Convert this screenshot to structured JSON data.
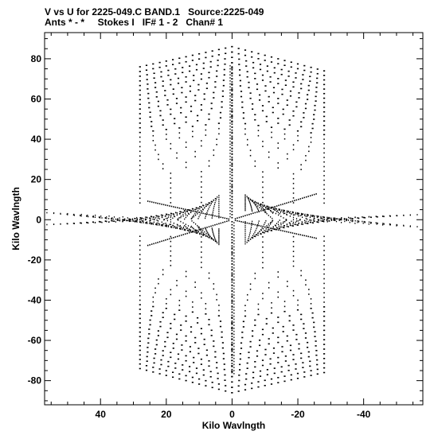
{
  "header": {
    "line1": "V vs U for 2225-049.C BAND.1   Source:2225-049",
    "line2": "Ants * - *     Stokes I   IF# 1 - 2   Chan# 1"
  },
  "chart_data": {
    "type": "scatter",
    "title": "V vs U for 2225-049.C BAND.1   Source:2225-049",
    "subtitle": "Ants * - *     Stokes I   IF# 1 - 2   Chan# 1",
    "xlabel": "Kilo Wavlngth",
    "ylabel": "Kilo Wavlngth",
    "xlim": [
      57,
      -58
    ],
    "ylim": [
      -92,
      93
    ],
    "x_ticks": [
      40,
      20,
      0,
      -20,
      -40
    ],
    "x_tick_labels": [
      "40",
      "20",
      "0",
      "-20",
      "-40"
    ],
    "y_ticks": [
      80,
      60,
      40,
      20,
      0,
      -20,
      -40,
      -60,
      -80
    ],
    "y_tick_labels": [
      "80",
      "60",
      "40",
      "20",
      "0",
      "-20",
      "-40",
      "-60",
      "-80"
    ],
    "grid": false,
    "marker_color": "#000000",
    "series": [
      {
        "description_of_geometry": "u,v coverage; points are symmetric under (u,v) -> (-u,-v)",
        "points": []
      }
    ]
  }
}
